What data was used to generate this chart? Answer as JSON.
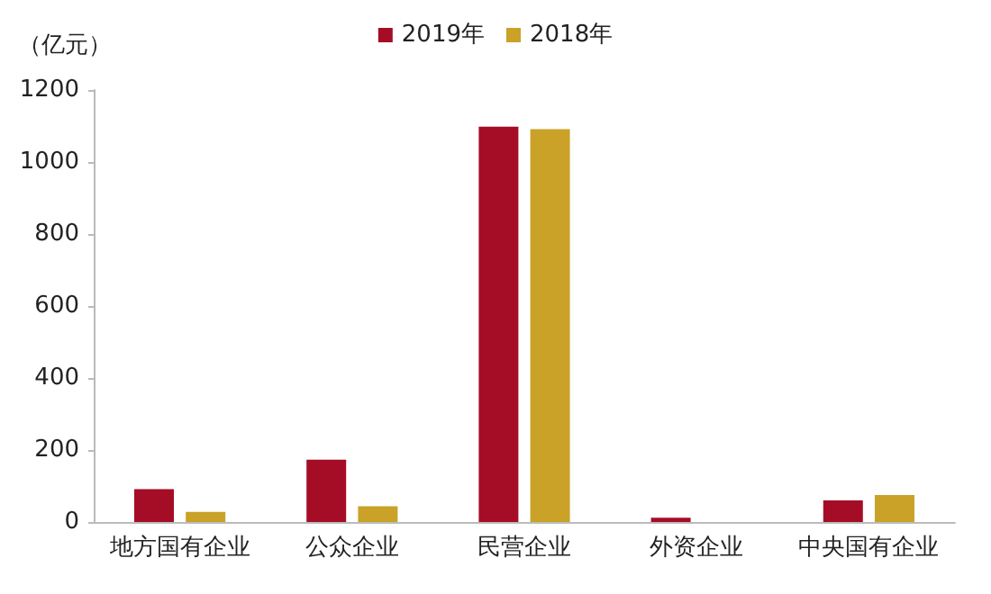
{
  "chart_data": {
    "type": "bar",
    "ylabel": "（亿元）",
    "categories": [
      "地方国有企业",
      "公众企业",
      "民营企业",
      "外资企业",
      "中央国有企业"
    ],
    "series": [
      {
        "name": "2019年",
        "color": "#a50d26",
        "values": [
          91,
          173,
          1098,
          12,
          60
        ]
      },
      {
        "name": "2018年",
        "color": "#c9a227",
        "values": [
          28,
          44,
          1091,
          0,
          75
        ]
      }
    ],
    "ylim": [
      0,
      1200
    ],
    "yticks": [
      0,
      200,
      400,
      600,
      800,
      1000,
      1200
    ],
    "grid": false,
    "legend": "top"
  }
}
